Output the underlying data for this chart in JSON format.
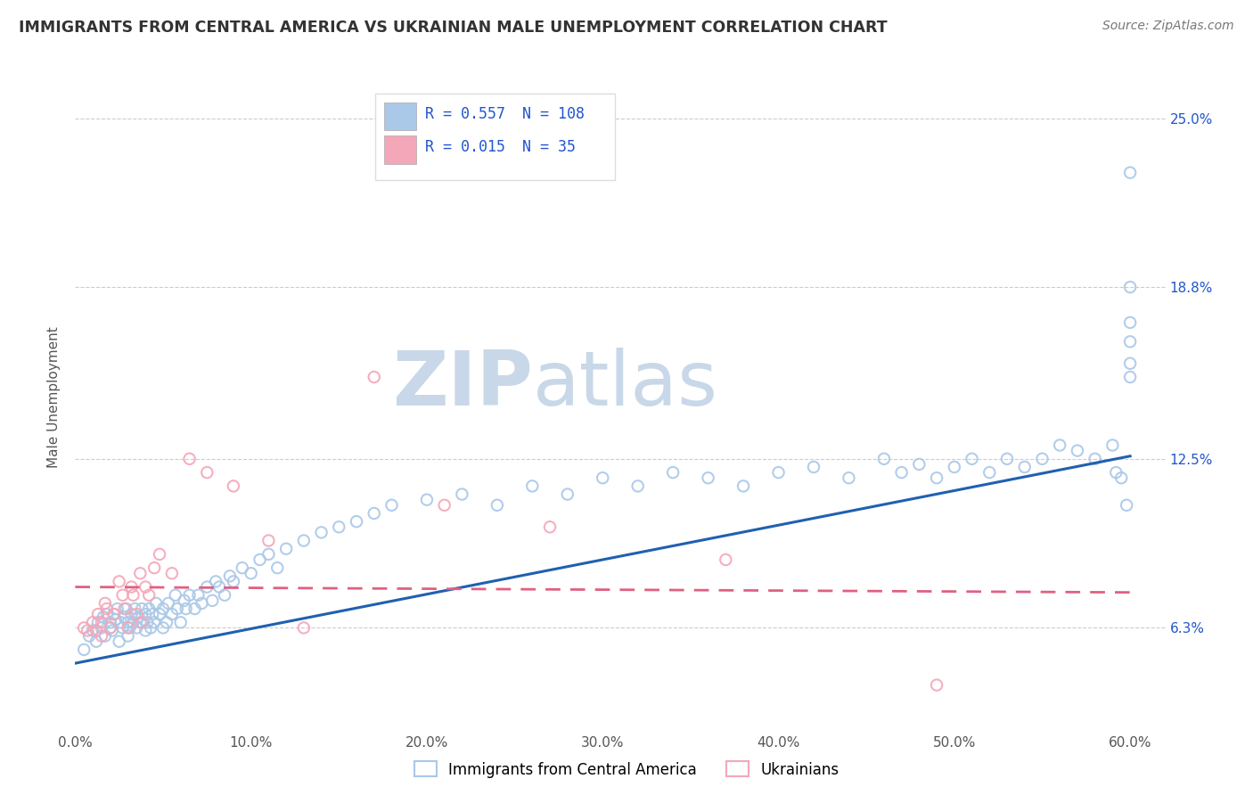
{
  "title": "IMMIGRANTS FROM CENTRAL AMERICA VS UKRAINIAN MALE UNEMPLOYMENT CORRELATION CHART",
  "source": "Source: ZipAtlas.com",
  "ylabel": "Male Unemployment",
  "xlim": [
    0.0,
    0.62
  ],
  "ylim": [
    0.025,
    0.27
  ],
  "yticks": [
    0.063,
    0.125,
    0.188,
    0.25
  ],
  "ytick_labels": [
    "6.3%",
    "12.5%",
    "18.8%",
    "25.0%"
  ],
  "xticks": [
    0.0,
    0.1,
    0.2,
    0.3,
    0.4,
    0.5,
    0.6
  ],
  "xtick_labels": [
    "0.0%",
    "10.0%",
    "20.0%",
    "30.0%",
    "40.0%",
    "50.0%",
    "60.0%"
  ],
  "legend_entries": [
    {
      "label": "Immigrants from Central America",
      "R": "0.557",
      "N": "108",
      "color": "#aac8e8"
    },
    {
      "label": "Ukrainians",
      "R": "0.015",
      "N": "35",
      "color": "#f4a7b9"
    }
  ],
  "blue_color": "#aac8e8",
  "pink_color": "#f4a7b9",
  "trend_blue": "#2060b0",
  "trend_pink": "#e06080",
  "watermark_zip": "ZIP",
  "watermark_atlas": "atlas",
  "watermark_color_zip": "#c8d8e8",
  "watermark_color_atlas": "#c8d8e8",
  "background_color": "#ffffff",
  "grid_color": "#cccccc",
  "title_color": "#333333",
  "r_n_color": "#2255cc",
  "blue_scatter_x": [
    0.005,
    0.008,
    0.01,
    0.012,
    0.013,
    0.015,
    0.016,
    0.017,
    0.018,
    0.02,
    0.02,
    0.021,
    0.022,
    0.023,
    0.024,
    0.025,
    0.026,
    0.027,
    0.028,
    0.029,
    0.03,
    0.03,
    0.031,
    0.032,
    0.033,
    0.034,
    0.035,
    0.036,
    0.037,
    0.038,
    0.04,
    0.04,
    0.041,
    0.042,
    0.043,
    0.044,
    0.045,
    0.046,
    0.048,
    0.05,
    0.05,
    0.052,
    0.053,
    0.055,
    0.057,
    0.058,
    0.06,
    0.062,
    0.063,
    0.065,
    0.068,
    0.07,
    0.072,
    0.075,
    0.078,
    0.08,
    0.082,
    0.085,
    0.088,
    0.09,
    0.095,
    0.1,
    0.105,
    0.11,
    0.115,
    0.12,
    0.13,
    0.14,
    0.15,
    0.16,
    0.17,
    0.18,
    0.2,
    0.22,
    0.24,
    0.26,
    0.28,
    0.3,
    0.32,
    0.34,
    0.36,
    0.38,
    0.4,
    0.42,
    0.44,
    0.46,
    0.47,
    0.48,
    0.49,
    0.5,
    0.51,
    0.52,
    0.53,
    0.54,
    0.55,
    0.56,
    0.57,
    0.58,
    0.59,
    0.592,
    0.595,
    0.598,
    0.6,
    0.6,
    0.6,
    0.6,
    0.6,
    0.6
  ],
  "blue_scatter_y": [
    0.055,
    0.06,
    0.062,
    0.058,
    0.065,
    0.063,
    0.067,
    0.06,
    0.068,
    0.063,
    0.065,
    0.062,
    0.068,
    0.066,
    0.07,
    0.058,
    0.065,
    0.063,
    0.067,
    0.07,
    0.06,
    0.065,
    0.063,
    0.068,
    0.065,
    0.07,
    0.063,
    0.067,
    0.065,
    0.07,
    0.062,
    0.068,
    0.065,
    0.07,
    0.063,
    0.068,
    0.065,
    0.072,
    0.068,
    0.063,
    0.07,
    0.065,
    0.072,
    0.068,
    0.075,
    0.07,
    0.065,
    0.073,
    0.07,
    0.075,
    0.07,
    0.075,
    0.072,
    0.078,
    0.073,
    0.08,
    0.078,
    0.075,
    0.082,
    0.08,
    0.085,
    0.083,
    0.088,
    0.09,
    0.085,
    0.092,
    0.095,
    0.098,
    0.1,
    0.102,
    0.105,
    0.108,
    0.11,
    0.112,
    0.108,
    0.115,
    0.112,
    0.118,
    0.115,
    0.12,
    0.118,
    0.115,
    0.12,
    0.122,
    0.118,
    0.125,
    0.12,
    0.123,
    0.118,
    0.122,
    0.125,
    0.12,
    0.125,
    0.122,
    0.125,
    0.13,
    0.128,
    0.125,
    0.13,
    0.12,
    0.118,
    0.108,
    0.16,
    0.175,
    0.188,
    0.168,
    0.23,
    0.155
  ],
  "pink_scatter_x": [
    0.005,
    0.007,
    0.01,
    0.012,
    0.013,
    0.015,
    0.015,
    0.017,
    0.018,
    0.02,
    0.022,
    0.025,
    0.027,
    0.028,
    0.03,
    0.032,
    0.033,
    0.035,
    0.037,
    0.038,
    0.04,
    0.042,
    0.045,
    0.048,
    0.055,
    0.065,
    0.075,
    0.09,
    0.11,
    0.13,
    0.17,
    0.21,
    0.27,
    0.37,
    0.49
  ],
  "pink_scatter_y": [
    0.063,
    0.062,
    0.065,
    0.062,
    0.068,
    0.06,
    0.065,
    0.072,
    0.07,
    0.063,
    0.068,
    0.08,
    0.075,
    0.07,
    0.063,
    0.078,
    0.075,
    0.068,
    0.083,
    0.065,
    0.078,
    0.075,
    0.085,
    0.09,
    0.083,
    0.125,
    0.12,
    0.115,
    0.095,
    0.063,
    0.155,
    0.108,
    0.1,
    0.088,
    0.042
  ],
  "blue_trend_x0": 0.0,
  "blue_trend_y0": 0.05,
  "blue_trend_x1": 0.6,
  "blue_trend_y1": 0.126,
  "pink_trend_x0": 0.0,
  "pink_trend_y0": 0.078,
  "pink_trend_x1": 0.6,
  "pink_trend_y1": 0.076
}
